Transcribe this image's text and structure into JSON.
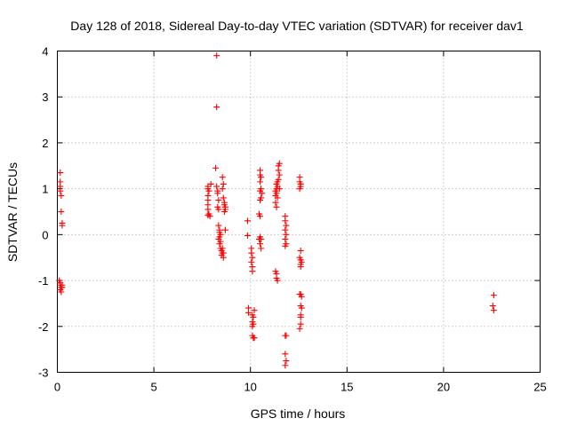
{
  "chart_data": {
    "type": "scatter",
    "title": "Day 128 of 2018, Sidereal Day-to-day VTEC variation (SDTVAR) for receiver dav1",
    "xlabel": "GPS time / hours",
    "ylabel": "SDTVAR / TECUs",
    "xlim": [
      0,
      25
    ],
    "ylim": [
      -3,
      4
    ],
    "xticks": [
      0,
      5,
      10,
      15,
      20,
      25
    ],
    "yticks": [
      -3,
      -2,
      -1,
      0,
      1,
      2,
      3,
      4
    ],
    "grid": true,
    "marker": "plus",
    "color": "#ff0000",
    "series": [
      {
        "name": "SDTVAR",
        "points": [
          [
            0.15,
            1.35
          ],
          [
            0.15,
            1.15
          ],
          [
            0.15,
            1.05
          ],
          [
            0.15,
            0.95
          ],
          [
            0.2,
            0.85
          ],
          [
            0.2,
            0.5
          ],
          [
            0.25,
            0.25
          ],
          [
            0.25,
            0.2
          ],
          [
            0.1,
            -1.0
          ],
          [
            0.15,
            -1.05
          ],
          [
            0.15,
            -1.1
          ],
          [
            0.2,
            -1.15
          ],
          [
            0.15,
            -1.2
          ],
          [
            0.2,
            -1.25
          ],
          [
            0.25,
            -1.15
          ],
          [
            0.25,
            -1.1
          ],
          [
            7.8,
            1.05
          ],
          [
            7.8,
            1.0
          ],
          [
            7.85,
            0.95
          ],
          [
            7.8,
            0.85
          ],
          [
            7.8,
            0.75
          ],
          [
            7.8,
            0.65
          ],
          [
            7.8,
            0.55
          ],
          [
            7.85,
            0.45
          ],
          [
            7.8,
            0.42
          ],
          [
            7.9,
            0.4
          ],
          [
            7.95,
            1.1
          ],
          [
            8.25,
            3.9
          ],
          [
            8.25,
            2.78
          ],
          [
            8.2,
            1.45
          ],
          [
            8.25,
            1.05
          ],
          [
            8.3,
            0.95
          ],
          [
            8.3,
            0.9
          ],
          [
            8.35,
            0.75
          ],
          [
            8.3,
            0.6
          ],
          [
            8.35,
            0.55
          ],
          [
            8.35,
            0.2
          ],
          [
            8.4,
            0.1
          ],
          [
            8.4,
            0.05
          ],
          [
            8.45,
            0.0
          ],
          [
            8.4,
            -0.05
          ],
          [
            8.35,
            -0.1
          ],
          [
            8.45,
            -0.15
          ],
          [
            8.4,
            -0.2
          ],
          [
            8.45,
            -0.3
          ],
          [
            8.5,
            -0.35
          ],
          [
            8.55,
            -0.4
          ],
          [
            8.5,
            -0.45
          ],
          [
            8.6,
            -0.5
          ],
          [
            8.55,
            -0.3
          ],
          [
            8.6,
            -0.4
          ],
          [
            8.55,
            1.25
          ],
          [
            8.6,
            1.1
          ],
          [
            8.55,
            1.0
          ],
          [
            8.6,
            0.8
          ],
          [
            8.65,
            0.7
          ],
          [
            8.65,
            0.65
          ],
          [
            8.7,
            0.6
          ],
          [
            8.7,
            0.55
          ],
          [
            8.65,
            0.5
          ],
          [
            8.7,
            0.1
          ],
          [
            9.85,
            0.3
          ],
          [
            9.85,
            -0.02
          ],
          [
            9.9,
            -1.6
          ],
          [
            9.9,
            -1.7
          ],
          [
            10.05,
            -0.4
          ],
          [
            10.1,
            -0.5
          ],
          [
            10.05,
            -0.6
          ],
          [
            10.1,
            -0.7
          ],
          [
            10.1,
            -0.8
          ],
          [
            10.05,
            -0.3
          ],
          [
            10.1,
            -1.75
          ],
          [
            10.15,
            -1.8
          ],
          [
            10.1,
            -1.9
          ],
          [
            10.15,
            -1.95
          ],
          [
            10.1,
            -2.0
          ],
          [
            10.2,
            -1.65
          ],
          [
            10.1,
            -2.2
          ],
          [
            10.15,
            -2.25
          ],
          [
            10.2,
            -2.25
          ],
          [
            10.5,
            1.4
          ],
          [
            10.5,
            1.3
          ],
          [
            10.55,
            1.25
          ],
          [
            10.5,
            1.15
          ],
          [
            10.55,
            1.0
          ],
          [
            10.5,
            0.95
          ],
          [
            10.6,
            0.9
          ],
          [
            10.55,
            0.8
          ],
          [
            10.5,
            0.75
          ],
          [
            10.45,
            0.45
          ],
          [
            10.5,
            0.4
          ],
          [
            10.5,
            -0.05
          ],
          [
            10.55,
            -0.1
          ],
          [
            10.45,
            -0.1
          ],
          [
            10.5,
            -0.2
          ],
          [
            10.55,
            -0.3
          ],
          [
            11.3,
            0.95
          ],
          [
            11.35,
            0.9
          ],
          [
            11.3,
            0.85
          ],
          [
            11.35,
            1.0
          ],
          [
            11.4,
            1.05
          ],
          [
            11.35,
            1.1
          ],
          [
            11.4,
            1.15
          ],
          [
            11.45,
            1.2
          ],
          [
            11.45,
            1.5
          ],
          [
            11.5,
            1.55
          ],
          [
            11.45,
            1.4
          ],
          [
            11.5,
            1.3
          ],
          [
            11.5,
            1.0
          ],
          [
            11.4,
            0.8
          ],
          [
            11.3,
            0.7
          ],
          [
            11.35,
            0.6
          ],
          [
            11.3,
            -0.8
          ],
          [
            11.35,
            -0.85
          ],
          [
            11.35,
            -0.95
          ],
          [
            11.4,
            -1.0
          ],
          [
            11.8,
            0.4
          ],
          [
            11.8,
            0.3
          ],
          [
            11.85,
            0.2
          ],
          [
            11.8,
            0.1
          ],
          [
            11.85,
            0.0
          ],
          [
            11.8,
            -0.1
          ],
          [
            11.85,
            -0.2
          ],
          [
            11.8,
            -0.25
          ],
          [
            11.8,
            -2.2
          ],
          [
            11.85,
            -2.2
          ],
          [
            11.8,
            -2.6
          ],
          [
            11.85,
            -2.75
          ],
          [
            11.8,
            -2.85
          ],
          [
            12.55,
            1.25
          ],
          [
            12.55,
            1.15
          ],
          [
            12.6,
            1.1
          ],
          [
            12.6,
            1.05
          ],
          [
            12.55,
            1.0
          ],
          [
            12.6,
            -0.35
          ],
          [
            12.55,
            -0.5
          ],
          [
            12.6,
            -0.55
          ],
          [
            12.65,
            -0.6
          ],
          [
            12.6,
            -0.7
          ],
          [
            12.6,
            -0.65
          ],
          [
            12.55,
            -1.3
          ],
          [
            12.6,
            -1.3
          ],
          [
            12.65,
            -1.35
          ],
          [
            12.6,
            -1.55
          ],
          [
            12.65,
            -1.6
          ],
          [
            12.6,
            -1.75
          ],
          [
            12.6,
            -1.8
          ],
          [
            12.6,
            -1.95
          ],
          [
            12.55,
            -2.05
          ],
          [
            22.6,
            -1.32
          ],
          [
            22.55,
            -1.55
          ],
          [
            22.6,
            -1.65
          ]
        ]
      }
    ]
  }
}
